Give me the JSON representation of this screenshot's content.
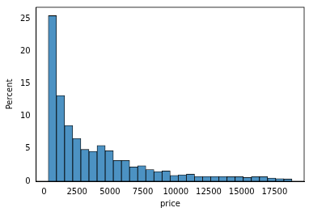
{
  "chart_data": {
    "type": "histogram",
    "x_label": "price",
    "y_label": "Percent",
    "bins": [
      326,
      942.6,
      1559.1,
      2175.7,
      2792.3,
      3408.8,
      4025.4,
      4642.0,
      5258.5,
      5875.1,
      6491.7,
      7108.2,
      7724.8,
      8341.4,
      8957.9,
      9574.5,
      10191.1,
      10807.6,
      11424.2,
      12040.8,
      12657.3,
      13273.9,
      13890.5,
      14507.0,
      15123.6,
      15740.2,
      16356.7,
      16973.3,
      17589.9,
      18206.4,
      18823
    ],
    "values": [
      25.5,
      13.2,
      8.6,
      6.6,
      4.9,
      4.6,
      5.5,
      4.7,
      3.2,
      3.2,
      2.2,
      2.4,
      1.8,
      1.5,
      1.6,
      0.9,
      1.0,
      1.1,
      0.75,
      0.75,
      0.75,
      0.75,
      0.7,
      0.7,
      0.6,
      0.7,
      0.7,
      0.5,
      0.4,
      0.35
    ],
    "color": "#4c92c3",
    "xlim": [
      -599,
      19748
    ],
    "xticks": [
      0,
      2500,
      5000,
      7500,
      10000,
      12500,
      15000,
      17500
    ],
    "ylim": [
      0,
      26.8
    ],
    "yticks": [
      0,
      5,
      10,
      15,
      20,
      25
    ],
    "grid": false
  }
}
